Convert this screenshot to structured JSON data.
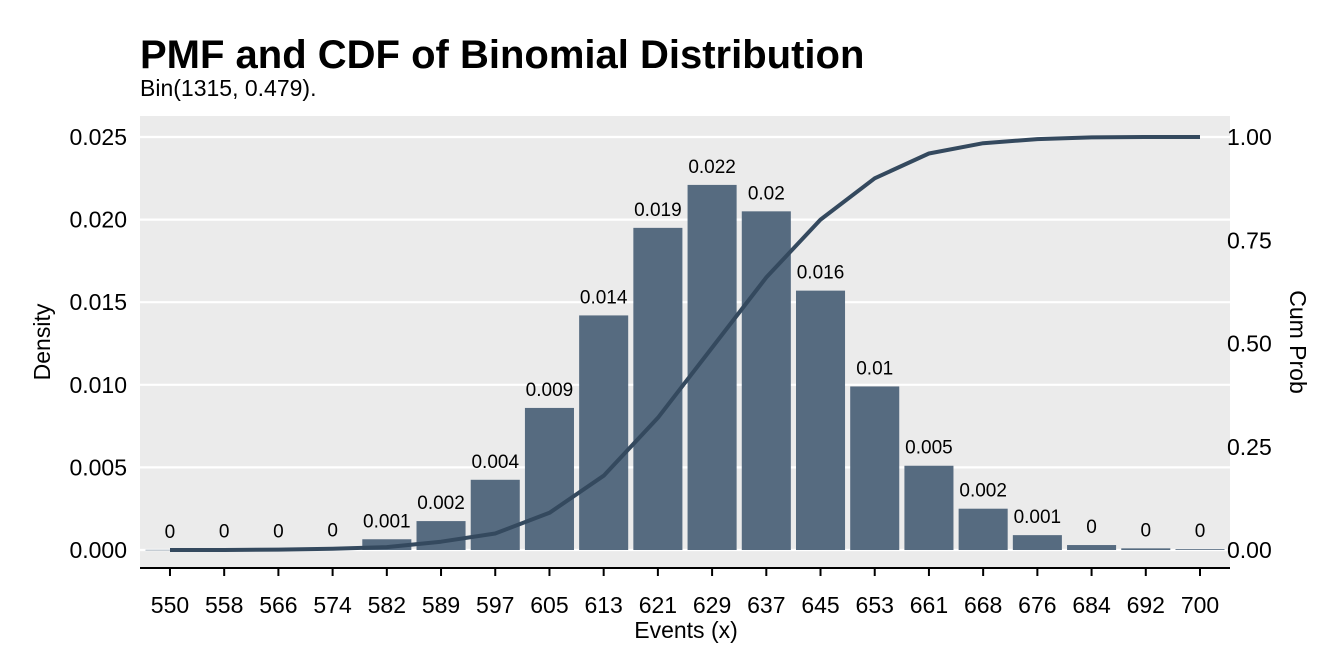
{
  "chart_data": {
    "type": "bar",
    "title": "PMF and CDF of Binomial Distribution",
    "subtitle": "Bin(1315, 0.479).",
    "xlabel": "Events (x)",
    "ylabel": "Density",
    "y2label": "Cum Prob",
    "categories": [
      "550",
      "558",
      "566",
      "574",
      "582",
      "589",
      "597",
      "605",
      "613",
      "621",
      "629",
      "637",
      "645",
      "653",
      "661",
      "668",
      "676",
      "684",
      "692",
      "700"
    ],
    "series": [
      {
        "name": "Density",
        "type": "bar",
        "values": [
          1e-05,
          2e-05,
          4e-05,
          0.0001,
          0.00065,
          0.00175,
          0.00425,
          0.0086,
          0.0142,
          0.0195,
          0.0221,
          0.0205,
          0.0157,
          0.0099,
          0.0051,
          0.0025,
          0.0009,
          0.0003,
          0.0001,
          5e-05
        ],
        "labels": [
          "0",
          "0",
          "0",
          "0",
          "0.001",
          "0.002",
          "0.004",
          "0.009",
          "0.014",
          "0.019",
          "0.022",
          "0.02",
          "0.016",
          "0.01",
          "0.005",
          "0.002",
          "0.001",
          "0",
          "0",
          "0"
        ]
      },
      {
        "name": "Cum Prob",
        "type": "line",
        "axis": "right",
        "values": [
          0.0,
          0.0,
          0.001,
          0.003,
          0.007,
          0.02,
          0.04,
          0.09,
          0.18,
          0.32,
          0.49,
          0.66,
          0.8,
          0.9,
          0.96,
          0.985,
          0.995,
          0.999,
          1.0,
          1.0
        ]
      }
    ],
    "ylim": [
      0,
      0.025
    ],
    "yticks": [
      "0.000",
      "0.005",
      "0.010",
      "0.015",
      "0.020",
      "0.025"
    ],
    "y2lim": [
      0,
      1
    ],
    "y2ticks": [
      "0.00",
      "0.25",
      "0.50",
      "0.75",
      "1.00"
    ],
    "grid": true,
    "colors": {
      "bar": "#566B80",
      "line": "#34495E",
      "panel": "#EBEBEB",
      "grid": "#FFFFFF"
    }
  }
}
